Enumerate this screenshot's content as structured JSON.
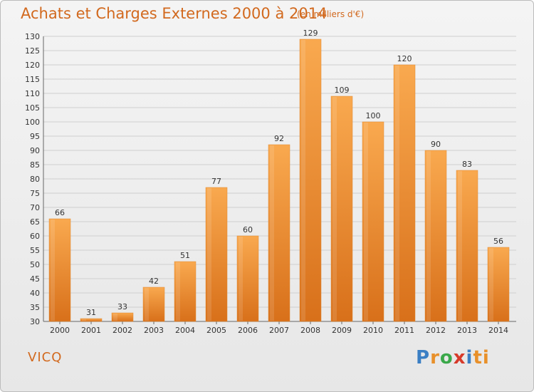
{
  "header": {
    "title": "Achats et Charges Externes 2000 à 2014",
    "subtitle": "(en milliers d'€)"
  },
  "footer": {
    "region": "VICQ",
    "logo": "Proxiti",
    "logo_letters": [
      "P",
      "r",
      "o",
      "x",
      "i",
      "ti"
    ]
  },
  "colors": {
    "bar_light": "#f8a64e",
    "bar_dark": "#d86f10",
    "grid": "#cfcfcf",
    "title": "#d2691e"
  },
  "chart_data": {
    "type": "bar",
    "title": "Achats et Charges Externes 2000 à 2014",
    "subtitle": "(en milliers d'€)",
    "categories": [
      "2000",
      "2001",
      "2002",
      "2003",
      "2004",
      "2005",
      "2006",
      "2007",
      "2008",
      "2009",
      "2010",
      "2011",
      "2012",
      "2013",
      "2014"
    ],
    "values": [
      66,
      31,
      33,
      42,
      51,
      77,
      60,
      92,
      129,
      109,
      100,
      120,
      90,
      83,
      56
    ],
    "ylim": [
      30,
      130
    ],
    "yticks": [
      30,
      35,
      40,
      45,
      50,
      55,
      60,
      65,
      70,
      75,
      80,
      85,
      90,
      95,
      100,
      105,
      110,
      115,
      120,
      125,
      130
    ],
    "grid": true,
    "data_labels": true
  }
}
